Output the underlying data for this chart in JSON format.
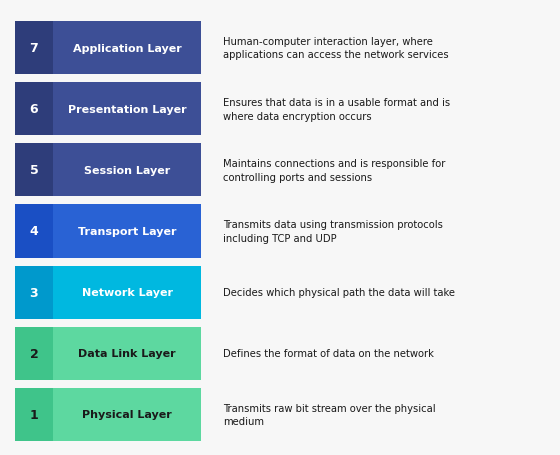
{
  "layers": [
    {
      "number": "7",
      "name": "Application Layer",
      "description": "Human-computer interaction layer, where\napplications can access the network services",
      "num_color": "#2e3d7a",
      "bar_color": "#3d4f96",
      "text_color": "#ffffff",
      "num_text_color": "#ffffff"
    },
    {
      "number": "6",
      "name": "Presentation Layer",
      "description": "Ensures that data is in a usable format and is\nwhere data encryption occurs",
      "num_color": "#2e3d7a",
      "bar_color": "#3d4f96",
      "text_color": "#ffffff",
      "num_text_color": "#ffffff"
    },
    {
      "number": "5",
      "name": "Session Layer",
      "description": "Maintains connections and is responsible for\ncontrolling ports and sessions",
      "num_color": "#2e3d7a",
      "bar_color": "#3d4f96",
      "text_color": "#ffffff",
      "num_text_color": "#ffffff"
    },
    {
      "number": "4",
      "name": "Transport Layer",
      "description": "Transmits data using transmission protocols\nincluding TCP and UDP",
      "num_color": "#1a4fc4",
      "bar_color": "#2962d4",
      "text_color": "#ffffff",
      "num_text_color": "#ffffff"
    },
    {
      "number": "3",
      "name": "Network Layer",
      "description": "Decides which physical path the data will take",
      "num_color": "#0099cc",
      "bar_color": "#00b8e0",
      "text_color": "#ffffff",
      "num_text_color": "#ffffff"
    },
    {
      "number": "2",
      "name": "Data Link Layer",
      "description": "Defines the format of data on the network",
      "num_color": "#3fc48a",
      "bar_color": "#5dd8a0",
      "text_color": "#1a1a1a",
      "num_text_color": "#1a1a1a"
    },
    {
      "number": "1",
      "name": "Physical Layer",
      "description": "Transmits raw bit stream over the physical\nmedium",
      "num_color": "#3fc48a",
      "bar_color": "#5dd8a0",
      "text_color": "#1a1a1a",
      "num_text_color": "#1a1a1a"
    }
  ],
  "background_color": "#f7f7f7",
  "desc_color": "#1a1a1a",
  "fig_width": 5.6,
  "fig_height": 4.56,
  "dpi": 100
}
